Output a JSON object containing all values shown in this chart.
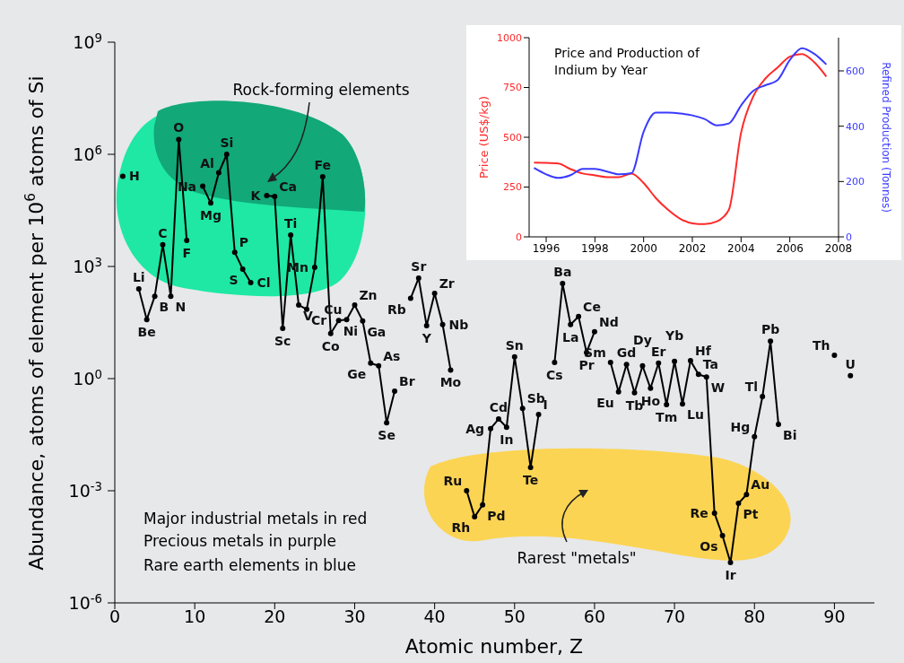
{
  "chart_data": [
    {
      "type": "line",
      "xlabel": "Atomic number, Z",
      "ylabel": "Abundance, atoms of element per 10$^{6}$ atoms of Si",
      "color": "#000000",
      "marker": "circle",
      "line_style": "solid",
      "log": "y",
      "x": [
        1,
        2,
        3,
        4,
        5,
        6,
        7,
        8,
        9,
        10,
        11,
        12,
        13,
        14,
        15,
        16,
        17,
        18,
        19,
        20,
        21,
        22,
        23,
        24,
        25,
        26,
        27,
        28,
        29,
        30,
        31,
        32,
        33,
        34,
        35,
        36,
        37,
        38,
        39,
        40,
        41,
        42,
        43,
        44,
        45,
        46,
        47,
        48,
        49,
        50,
        51,
        52,
        53,
        54,
        55,
        56,
        57,
        58,
        59,
        60,
        61,
        62,
        63,
        64,
        65,
        66,
        67,
        68,
        69,
        70,
        71,
        72,
        73,
        74,
        75,
        76,
        77,
        78,
        79,
        80,
        81,
        82,
        83,
        84,
        85,
        86,
        87,
        88,
        89,
        90,
        91,
        92
      ],
      "values": [
        260000,
        null,
        250,
        38,
        160,
        3800,
        160,
        2500000,
        5000,
        null,
        140000,
        50000,
        320000,
        1000000,
        2400,
        850,
        370,
        null,
        79000,
        74000,
        22,
        6900,
        93,
        71,
        950,
        250000,
        16,
        36,
        38,
        93,
        35,
        2.6,
        2.2,
        0.066,
        0.46,
        null,
        140,
        490,
        26,
        190,
        28,
        1.7,
        null,
        0.001,
        0.0002,
        0.00042,
        0.046,
        0.083,
        0.05,
        3.8,
        0.16,
        0.0042,
        0.11,
        null,
        2.7,
        350,
        28,
        46,
        5,
        18,
        null,
        2.7,
        0.44,
        2.4,
        0.42,
        2.2,
        0.55,
        2.6,
        0.2,
        2.9,
        0.21,
        3,
        1.3,
        1.1,
        0.00025,
        6.3e-05,
        1.2e-05,
        0.00046,
        0.00079,
        0.028,
        0.33,
        10,
        0.06,
        null,
        null,
        null,
        null,
        null,
        null,
        4.2,
        null,
        1.2
      ],
      "xlim": [
        0,
        95
      ],
      "xticks": [
        0,
        10,
        20,
        30,
        40,
        50,
        60,
        70,
        80,
        90
      ],
      "ylim": [
        1e-06,
        1000000000
      ],
      "yticks": [
        {
          "value": 1e-06,
          "label": "10$^{-6}$"
        },
        {
          "value": 0.001,
          "label": "10$^{-3}$"
        },
        {
          "value": 1,
          "label": "10$^{0}$"
        },
        {
          "value": 1000,
          "label": "10$^{3}$"
        },
        {
          "value": 1000000,
          "label": "10$^{6}$"
        },
        {
          "value": 1000000000,
          "label": "10$^{9}$"
        }
      ],
      "grid": false,
      "legend": false,
      "annotations": [
        {
          "text": "H",
          "x": 1,
          "y": 260000
        },
        {
          "text": "Li",
          "x": 3,
          "y": 250
        },
        {
          "text": "Be",
          "x": 4,
          "y": 38
        },
        {
          "text": "B",
          "x": 5,
          "y": 160
        },
        {
          "text": "C",
          "x": 6,
          "y": 3800
        },
        {
          "text": "N",
          "x": 7,
          "y": 160
        },
        {
          "text": "O",
          "x": 8,
          "y": 2500000
        },
        {
          "text": "F",
          "x": 9,
          "y": 5000
        },
        {
          "text": "Na",
          "x": 11,
          "y": 140000
        },
        {
          "text": "Mg",
          "x": 12,
          "y": 50000
        },
        {
          "text": "Al",
          "x": 13,
          "y": 320000
        },
        {
          "text": "Si",
          "x": 14,
          "y": 1000000
        },
        {
          "text": "P",
          "x": 15,
          "y": 2400
        },
        {
          "text": "S",
          "x": 16,
          "y": 850
        },
        {
          "text": "Cl",
          "x": 17,
          "y": 370
        },
        {
          "text": "K",
          "x": 19,
          "y": 79000
        },
        {
          "text": "Ca",
          "x": 20,
          "y": 74000
        },
        {
          "text": "Sc",
          "x": 21,
          "y": 22
        },
        {
          "text": "Ti",
          "x": 22,
          "y": 6900
        },
        {
          "text": "V",
          "x": 23,
          "y": 93
        },
        {
          "text": "Cr",
          "x": 24,
          "y": 71
        },
        {
          "text": "Mn",
          "x": 25,
          "y": 950
        },
        {
          "text": "Fe",
          "x": 26,
          "y": 250000
        },
        {
          "text": "Co",
          "x": 27,
          "y": 16
        },
        {
          "text": "Ni",
          "x": 28,
          "y": 36
        },
        {
          "text": "Cu",
          "x": 29,
          "y": 38
        },
        {
          "text": "Zn",
          "x": 30,
          "y": 93
        },
        {
          "text": "Ga",
          "x": 31,
          "y": 35
        },
        {
          "text": "Ge",
          "x": 32,
          "y": 2.6
        },
        {
          "text": "As",
          "x": 33,
          "y": 2.2
        },
        {
          "text": "Se",
          "x": 34,
          "y": 0.066
        },
        {
          "text": "Br",
          "x": 35,
          "y": 0.46
        },
        {
          "text": "Rb",
          "x": 37,
          "y": 140
        },
        {
          "text": "Sr",
          "x": 38,
          "y": 490
        },
        {
          "text": "Y",
          "x": 39,
          "y": 26
        },
        {
          "text": "Zr",
          "x": 40,
          "y": 190
        },
        {
          "text": "Nb",
          "x": 41,
          "y": 28
        },
        {
          "text": "Mo",
          "x": 42,
          "y": 1.7
        },
        {
          "text": "Ru",
          "x": 44,
          "y": 0.001
        },
        {
          "text": "Rh",
          "x": 45,
          "y": 0.0002
        },
        {
          "text": "Pd",
          "x": 46,
          "y": 0.00042
        },
        {
          "text": "Ag",
          "x": 47,
          "y": 0.046
        },
        {
          "text": "Cd",
          "x": 48,
          "y": 0.083
        },
        {
          "text": "In",
          "x": 49,
          "y": 0.05
        },
        {
          "text": "Sn",
          "x": 50,
          "y": 3.8
        },
        {
          "text": "Sb",
          "x": 51,
          "y": 0.16
        },
        {
          "text": "Te",
          "x": 52,
          "y": 0.0042
        },
        {
          "text": "I",
          "x": 53,
          "y": 0.11
        },
        {
          "text": "Cs",
          "x": 55,
          "y": 2.7
        },
        {
          "text": "Ba",
          "x": 56,
          "y": 350
        },
        {
          "text": "La",
          "x": 57,
          "y": 28
        },
        {
          "text": "Ce",
          "x": 58,
          "y": 46
        },
        {
          "text": "Pr",
          "x": 59,
          "y": 5
        },
        {
          "text": "Nd",
          "x": 60,
          "y": 18
        },
        {
          "text": "Sm",
          "x": 62,
          "y": 2.7
        },
        {
          "text": "Eu",
          "x": 63,
          "y": 0.44
        },
        {
          "text": "Gd",
          "x": 64,
          "y": 2.4
        },
        {
          "text": "Tb",
          "x": 65,
          "y": 0.42
        },
        {
          "text": "Dy",
          "x": 66,
          "y": 2.2
        },
        {
          "text": "Ho",
          "x": 67,
          "y": 0.55
        },
        {
          "text": "Er",
          "x": 68,
          "y": 2.6
        },
        {
          "text": "Tm",
          "x": 69,
          "y": 0.2
        },
        {
          "text": "Yb",
          "x": 70,
          "y": 2.9
        },
        {
          "text": "Lu",
          "x": 71,
          "y": 0.21
        },
        {
          "text": "Hf",
          "x": 72,
          "y": 3
        },
        {
          "text": "Ta",
          "x": 73,
          "y": 1.3
        },
        {
          "text": "W",
          "x": 74,
          "y": 1.1
        },
        {
          "text": "Re",
          "x": 75,
          "y": 0.00025
        },
        {
          "text": "Os",
          "x": 76,
          "y": 6.3e-05
        },
        {
          "text": "Ir",
          "x": 77,
          "y": 1.2e-05
        },
        {
          "text": "Pt",
          "x": 78,
          "y": 0.00046
        },
        {
          "text": "Au",
          "x": 79,
          "y": 0.00079
        },
        {
          "text": "Hg",
          "x": 80,
          "y": 0.028
        },
        {
          "text": "Tl",
          "x": 81,
          "y": 0.33
        },
        {
          "text": "Pb",
          "x": 82,
          "y": 10
        },
        {
          "text": "Bi",
          "x": 83,
          "y": 0.06
        },
        {
          "text": "Th",
          "x": 90,
          "y": 4.2
        },
        {
          "text": "U",
          "x": 92,
          "y": 1.2
        },
        "Rock-forming elements",
        "Rarest \"metals\"",
        "Major industrial metals in red",
        "Precious metals in purple",
        "Rare earth elements in blue"
      ]
    },
    {
      "type": "line",
      "title": "Price and Production of Indium by Year",
      "ylabel": "Price (US$/kg)",
      "y2label": "Refined Production (Tonnes)",
      "grid": false,
      "legend": false,
      "marker": "none",
      "x": [
        1995.5,
        1996,
        1996.5,
        1997,
        1997.5,
        1998,
        1998.5,
        1999,
        1999.5,
        2000,
        2000.5,
        2001,
        2001.5,
        2002,
        2002.5,
        2003,
        2003.5,
        2004,
        2004.5,
        2005,
        2005.5,
        2006,
        2006.5,
        2007,
        2007.5
      ],
      "series": [
        {
          "color": "#ff2a2a",
          "values": [
            373,
            372,
            368,
            340,
            318,
            309,
            300,
            300,
            318,
            270,
            195,
            136,
            91,
            68,
            64,
            77,
            136,
            523,
            705,
            795,
            850,
            905,
            918,
            877,
            805
          ]
        },
        {
          "color": "#3a3aff",
          "axis": "y2",
          "values": [
            249,
            226,
            213,
            223,
            246,
            246,
            236,
            226,
            230,
            380,
            449,
            449,
            446,
            439,
            426,
            403,
            410,
            475,
            528,
            548,
            567,
            639,
            682,
            662,
            623
          ]
        }
      ],
      "xlim": [
        1995.3,
        2008
      ],
      "xticks": [
        1996,
        1998,
        2000,
        2002,
        2004,
        2006,
        2008
      ],
      "ylim": [
        0,
        1000
      ],
      "yticks": [
        0,
        250,
        500,
        750,
        1000
      ],
      "y2lim": [
        0,
        720
      ],
      "y2ticks": [
        0,
        200,
        400,
        600
      ]
    }
  ]
}
